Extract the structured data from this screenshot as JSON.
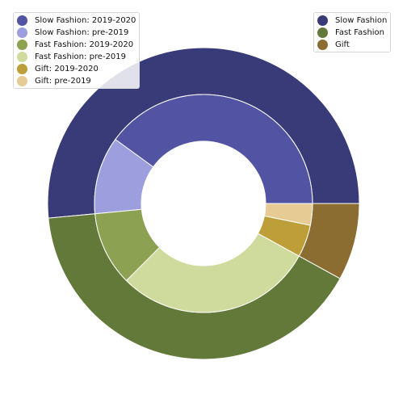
{
  "chart_data": {
    "type": "pie",
    "variant": "nested-donut",
    "title": "",
    "outer_ring": {
      "categories": [
        "Slow Fashion",
        "Fast Fashion",
        "Gift"
      ],
      "values": [
        51.5,
        40.5,
        8.0
      ],
      "colors": [
        "#393b79",
        "#637939",
        "#8c6d31"
      ]
    },
    "inner_ring": {
      "categories": [
        "Slow Fashion: 2019-2020",
        "Slow Fashion: pre-2019",
        "Fast Fashion: 2019-2020",
        "Fast Fashion: pre-2019",
        "Gift: 2019-2020",
        "Gift: pre-2019"
      ],
      "values": [
        40.0,
        11.5,
        11.0,
        29.5,
        4.8,
        3.2
      ],
      "colors": [
        "#5254a3",
        "#9c9ede",
        "#8ca252",
        "#cedb9c",
        "#bd9e39",
        "#e7cb94"
      ]
    },
    "start_angle_deg": 0,
    "direction": "counterclockwise",
    "legends": [
      {
        "placement": "upper-left",
        "entries": [
          {
            "label": "Slow Fashion: 2019-2020",
            "color": "#5254a3"
          },
          {
            "label": "Slow Fashion: pre-2019",
            "color": "#9c9ede"
          },
          {
            "label": "Fast Fashion: 2019-2020",
            "color": "#8ca252"
          },
          {
            "label": "Fast Fashion: pre-2019",
            "color": "#cedb9c"
          },
          {
            "label": "Gift: 2019-2020",
            "color": "#bd9e39"
          },
          {
            "label": "Gift: pre-2019",
            "color": "#e7cb94"
          }
        ]
      },
      {
        "placement": "upper-right",
        "entries": [
          {
            "label": "Slow Fashion",
            "color": "#393b79"
          },
          {
            "label": "Fast Fashion",
            "color": "#637939"
          },
          {
            "label": "Gift",
            "color": "#8c6d31"
          }
        ]
      }
    ]
  }
}
